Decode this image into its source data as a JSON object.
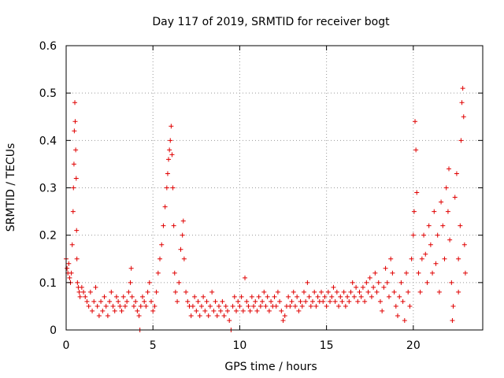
{
  "chart_data": {
    "type": "scatter",
    "title": "Day 117 of 2019, SRMTID for receiver bogt",
    "xlabel": "GPS time / hours",
    "ylabel": "SRMTID / TECUs",
    "xlim": [
      0,
      24
    ],
    "ylim": [
      0,
      0.6
    ],
    "xticks": [
      0,
      5,
      10,
      15,
      20
    ],
    "xtick_labels": [
      "0",
      "5",
      "10",
      "15",
      "20"
    ],
    "yticks": [
      0,
      0.1,
      0.2,
      0.3,
      0.4,
      0.5,
      0.6
    ],
    "ytick_labels": [
      "0",
      "0.1",
      "0.2",
      "0.3",
      "0.4",
      "0.5",
      "0.6"
    ],
    "grid": true,
    "marker": "+",
    "color": "#e00000",
    "series": [
      {
        "name": "SRMTID",
        "points": [
          [
            0.0,
            0.15
          ],
          [
            0.05,
            0.13
          ],
          [
            0.1,
            0.12
          ],
          [
            0.15,
            0.14
          ],
          [
            0.2,
            0.11
          ],
          [
            0.25,
            0.1
          ],
          [
            0.3,
            0.12
          ],
          [
            0.35,
            0.18
          ],
          [
            0.4,
            0.25
          ],
          [
            0.42,
            0.3
          ],
          [
            0.45,
            0.35
          ],
          [
            0.47,
            0.42
          ],
          [
            0.5,
            0.48
          ],
          [
            0.52,
            0.44
          ],
          [
            0.55,
            0.38
          ],
          [
            0.58,
            0.32
          ],
          [
            0.6,
            0.21
          ],
          [
            0.62,
            0.15
          ],
          [
            0.65,
            0.1
          ],
          [
            0.7,
            0.09
          ],
          [
            0.75,
            0.08
          ],
          [
            0.8,
            0.07
          ],
          [
            0.9,
            0.09
          ],
          [
            1.0,
            0.08
          ],
          [
            1.1,
            0.07
          ],
          [
            1.2,
            0.06
          ],
          [
            1.3,
            0.05
          ],
          [
            1.4,
            0.08
          ],
          [
            1.5,
            0.04
          ],
          [
            1.6,
            0.06
          ],
          [
            1.7,
            0.09
          ],
          [
            1.8,
            0.05
          ],
          [
            1.9,
            0.03
          ],
          [
            2.0,
            0.06
          ],
          [
            2.1,
            0.04
          ],
          [
            2.2,
            0.07
          ],
          [
            2.3,
            0.05
          ],
          [
            2.4,
            0.03
          ],
          [
            2.5,
            0.06
          ],
          [
            2.6,
            0.08
          ],
          [
            2.7,
            0.05
          ],
          [
            2.8,
            0.04
          ],
          [
            2.9,
            0.07
          ],
          [
            3.0,
            0.06
          ],
          [
            3.1,
            0.05
          ],
          [
            3.2,
            0.04
          ],
          [
            3.3,
            0.07
          ],
          [
            3.4,
            0.05
          ],
          [
            3.5,
            0.06
          ],
          [
            3.6,
            0.08
          ],
          [
            3.7,
            0.1
          ],
          [
            3.75,
            0.13
          ],
          [
            3.8,
            0.07
          ],
          [
            3.9,
            0.05
          ],
          [
            4.0,
            0.06
          ],
          [
            4.1,
            0.04
          ],
          [
            4.2,
            0.03
          ],
          [
            4.25,
            0.0
          ],
          [
            4.3,
            0.05
          ],
          [
            4.4,
            0.07
          ],
          [
            4.5,
            0.06
          ],
          [
            4.6,
            0.05
          ],
          [
            4.7,
            0.08
          ],
          [
            4.8,
            0.1
          ],
          [
            4.9,
            0.06
          ],
          [
            5.0,
            0.04
          ],
          [
            5.1,
            0.05
          ],
          [
            5.2,
            0.08
          ],
          [
            5.3,
            0.12
          ],
          [
            5.4,
            0.15
          ],
          [
            5.5,
            0.18
          ],
          [
            5.6,
            0.22
          ],
          [
            5.7,
            0.26
          ],
          [
            5.8,
            0.3
          ],
          [
            5.85,
            0.33
          ],
          [
            5.9,
            0.36
          ],
          [
            5.95,
            0.38
          ],
          [
            6.0,
            0.4
          ],
          [
            6.05,
            0.43
          ],
          [
            6.1,
            0.37
          ],
          [
            6.15,
            0.3
          ],
          [
            6.2,
            0.22
          ],
          [
            6.25,
            0.12
          ],
          [
            6.3,
            0.08
          ],
          [
            6.4,
            0.06
          ],
          [
            6.5,
            0.1
          ],
          [
            6.6,
            0.17
          ],
          [
            6.7,
            0.2
          ],
          [
            6.75,
            0.23
          ],
          [
            6.8,
            0.15
          ],
          [
            6.9,
            0.08
          ],
          [
            7.0,
            0.06
          ],
          [
            7.1,
            0.05
          ],
          [
            7.2,
            0.03
          ],
          [
            7.3,
            0.05
          ],
          [
            7.4,
            0.07
          ],
          [
            7.5,
            0.04
          ],
          [
            7.6,
            0.06
          ],
          [
            7.7,
            0.03
          ],
          [
            7.8,
            0.05
          ],
          [
            7.9,
            0.07
          ],
          [
            8.0,
            0.04
          ],
          [
            8.1,
            0.06
          ],
          [
            8.2,
            0.03
          ],
          [
            8.3,
            0.05
          ],
          [
            8.4,
            0.08
          ],
          [
            8.5,
            0.04
          ],
          [
            8.6,
            0.06
          ],
          [
            8.7,
            0.03
          ],
          [
            8.8,
            0.05
          ],
          [
            8.9,
            0.04
          ],
          [
            9.0,
            0.06
          ],
          [
            9.1,
            0.03
          ],
          [
            9.2,
            0.05
          ],
          [
            9.3,
            0.04
          ],
          [
            9.4,
            0.02
          ],
          [
            9.5,
            0.0
          ],
          [
            9.6,
            0.05
          ],
          [
            9.7,
            0.07
          ],
          [
            9.8,
            0.04
          ],
          [
            9.9,
            0.06
          ],
          [
            10.0,
            0.05
          ],
          [
            10.1,
            0.07
          ],
          [
            10.2,
            0.04
          ],
          [
            10.3,
            0.11
          ],
          [
            10.4,
            0.06
          ],
          [
            10.5,
            0.05
          ],
          [
            10.6,
            0.04
          ],
          [
            10.7,
            0.07
          ],
          [
            10.8,
            0.05
          ],
          [
            10.9,
            0.06
          ],
          [
            11.0,
            0.04
          ],
          [
            11.1,
            0.07
          ],
          [
            11.2,
            0.05
          ],
          [
            11.3,
            0.06
          ],
          [
            11.4,
            0.08
          ],
          [
            11.5,
            0.05
          ],
          [
            11.6,
            0.07
          ],
          [
            11.7,
            0.04
          ],
          [
            11.8,
            0.06
          ],
          [
            11.9,
            0.05
          ],
          [
            12.0,
            0.07
          ],
          [
            12.1,
            0.05
          ],
          [
            12.2,
            0.08
          ],
          [
            12.3,
            0.06
          ],
          [
            12.4,
            0.04
          ],
          [
            12.5,
            0.02
          ],
          [
            12.6,
            0.03
          ],
          [
            12.7,
            0.05
          ],
          [
            12.8,
            0.07
          ],
          [
            12.9,
            0.05
          ],
          [
            13.0,
            0.06
          ],
          [
            13.1,
            0.08
          ],
          [
            13.2,
            0.05
          ],
          [
            13.3,
            0.07
          ],
          [
            13.4,
            0.04
          ],
          [
            13.5,
            0.06
          ],
          [
            13.6,
            0.05
          ],
          [
            13.7,
            0.08
          ],
          [
            13.8,
            0.06
          ],
          [
            13.9,
            0.1
          ],
          [
            14.0,
            0.07
          ],
          [
            14.1,
            0.05
          ],
          [
            14.2,
            0.06
          ],
          [
            14.3,
            0.08
          ],
          [
            14.4,
            0.05
          ],
          [
            14.5,
            0.07
          ],
          [
            14.6,
            0.06
          ],
          [
            14.7,
            0.08
          ],
          [
            14.8,
            0.06
          ],
          [
            14.9,
            0.07
          ],
          [
            15.0,
            0.05
          ],
          [
            15.1,
            0.08
          ],
          [
            15.2,
            0.06
          ],
          [
            15.3,
            0.07
          ],
          [
            15.4,
            0.09
          ],
          [
            15.5,
            0.06
          ],
          [
            15.6,
            0.08
          ],
          [
            15.7,
            0.05
          ],
          [
            15.8,
            0.07
          ],
          [
            15.9,
            0.06
          ],
          [
            16.0,
            0.08
          ],
          [
            16.1,
            0.05
          ],
          [
            16.2,
            0.07
          ],
          [
            16.3,
            0.06
          ],
          [
            16.4,
            0.08
          ],
          [
            16.5,
            0.1
          ],
          [
            16.6,
            0.07
          ],
          [
            16.7,
            0.09
          ],
          [
            16.8,
            0.06
          ],
          [
            16.9,
            0.08
          ],
          [
            17.0,
            0.07
          ],
          [
            17.1,
            0.09
          ],
          [
            17.2,
            0.06
          ],
          [
            17.3,
            0.1
          ],
          [
            17.4,
            0.08
          ],
          [
            17.5,
            0.11
          ],
          [
            17.6,
            0.07
          ],
          [
            17.7,
            0.09
          ],
          [
            17.8,
            0.12
          ],
          [
            17.9,
            0.08
          ],
          [
            18.0,
            0.1
          ],
          [
            18.1,
            0.06
          ],
          [
            18.2,
            0.04
          ],
          [
            18.3,
            0.09
          ],
          [
            18.4,
            0.13
          ],
          [
            18.5,
            0.1
          ],
          [
            18.6,
            0.07
          ],
          [
            18.7,
            0.15
          ],
          [
            18.8,
            0.12
          ],
          [
            18.9,
            0.08
          ],
          [
            19.0,
            0.05
          ],
          [
            19.1,
            0.03
          ],
          [
            19.2,
            0.07
          ],
          [
            19.3,
            0.1
          ],
          [
            19.4,
            0.06
          ],
          [
            19.5,
            0.02
          ],
          [
            19.6,
            0.12
          ],
          [
            19.7,
            0.08
          ],
          [
            19.8,
            0.05
          ],
          [
            19.9,
            0.15
          ],
          [
            20.0,
            0.2
          ],
          [
            20.05,
            0.25
          ],
          [
            20.1,
            0.44
          ],
          [
            20.15,
            0.38
          ],
          [
            20.2,
            0.29
          ],
          [
            20.3,
            0.12
          ],
          [
            20.4,
            0.08
          ],
          [
            20.5,
            0.15
          ],
          [
            20.6,
            0.2
          ],
          [
            20.7,
            0.16
          ],
          [
            20.8,
            0.1
          ],
          [
            20.9,
            0.22
          ],
          [
            21.0,
            0.18
          ],
          [
            21.1,
            0.12
          ],
          [
            21.2,
            0.25
          ],
          [
            21.3,
            0.14
          ],
          [
            21.4,
            0.2
          ],
          [
            21.5,
            0.08
          ],
          [
            21.6,
            0.27
          ],
          [
            21.7,
            0.22
          ],
          [
            21.8,
            0.15
          ],
          [
            21.9,
            0.3
          ],
          [
            22.0,
            0.25
          ],
          [
            22.05,
            0.34
          ],
          [
            22.1,
            0.19
          ],
          [
            22.2,
            0.1
          ],
          [
            22.25,
            0.02
          ],
          [
            22.3,
            0.05
          ],
          [
            22.4,
            0.28
          ],
          [
            22.5,
            0.33
          ],
          [
            22.6,
            0.15
          ],
          [
            22.7,
            0.22
          ],
          [
            22.75,
            0.4
          ],
          [
            22.8,
            0.48
          ],
          [
            22.85,
            0.51
          ],
          [
            22.9,
            0.45
          ],
          [
            22.95,
            0.18
          ],
          [
            23.0,
            0.12
          ],
          [
            22.6,
            0.08
          ]
        ]
      }
    ]
  }
}
